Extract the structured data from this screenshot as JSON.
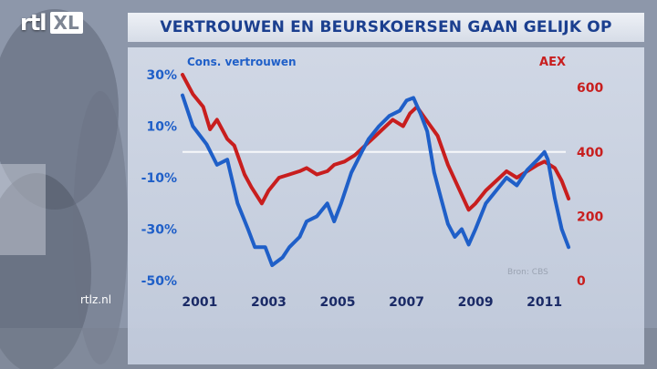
{
  "title": "VERTROUWEN EN BEURSKOERSEN GAAN GELIJK OP",
  "logo": {
    "left": "rtl",
    "right": "XL"
  },
  "site": "rtlz.nl",
  "source": "Bron: CBS",
  "colors": {
    "blue": "#1f5fc8",
    "red": "#c81e1e",
    "panel": "#d3dae8",
    "title": "#1b3f8f"
  },
  "chart_data": {
    "type": "line",
    "x_ticks": [
      "2001",
      "2003",
      "2005",
      "2007",
      "2009",
      "2011"
    ],
    "x_range": [
      2000.5,
      2011.75
    ],
    "left_axis": {
      "label": "Cons. vertrouwen",
      "ticks": [
        "30%",
        "10%",
        "-10%",
        "-30%",
        "-50%"
      ],
      "tick_values": [
        30,
        10,
        -10,
        -30,
        -50
      ],
      "range": [
        -50,
        30
      ]
    },
    "right_axis": {
      "label": "AEX",
      "ticks": [
        "600",
        "400",
        "200",
        "0"
      ],
      "tick_values": [
        600,
        400,
        200,
        0
      ],
      "range": [
        0,
        640
      ]
    },
    "grid": "horizontal line at 400 (AEX)",
    "series": [
      {
        "name": "Cons. vertrouwen",
        "axis": "left",
        "color": "#1f5fc8",
        "points": [
          [
            2000.5,
            22
          ],
          [
            2000.8,
            10
          ],
          [
            2001.2,
            3
          ],
          [
            2001.5,
            -5
          ],
          [
            2001.8,
            -3
          ],
          [
            2002.1,
            -20
          ],
          [
            2002.4,
            -30
          ],
          [
            2002.6,
            -37
          ],
          [
            2002.9,
            -37
          ],
          [
            2003.1,
            -44
          ],
          [
            2003.4,
            -41
          ],
          [
            2003.6,
            -37
          ],
          [
            2003.9,
            -33
          ],
          [
            2004.1,
            -27
          ],
          [
            2004.4,
            -25
          ],
          [
            2004.7,
            -20
          ],
          [
            2004.9,
            -27
          ],
          [
            2005.1,
            -20
          ],
          [
            2005.4,
            -8
          ],
          [
            2005.7,
            0
          ],
          [
            2005.9,
            5
          ],
          [
            2006.2,
            10
          ],
          [
            2006.5,
            14
          ],
          [
            2006.8,
            16
          ],
          [
            2007.0,
            20
          ],
          [
            2007.2,
            21
          ],
          [
            2007.4,
            15
          ],
          [
            2007.6,
            8
          ],
          [
            2007.8,
            -8
          ],
          [
            2008.0,
            -18
          ],
          [
            2008.2,
            -28
          ],
          [
            2008.4,
            -33
          ],
          [
            2008.6,
            -30
          ],
          [
            2008.8,
            -36
          ],
          [
            2009.0,
            -30
          ],
          [
            2009.3,
            -20
          ],
          [
            2009.6,
            -15
          ],
          [
            2009.9,
            -10
          ],
          [
            2010.2,
            -13
          ],
          [
            2010.5,
            -7
          ],
          [
            2010.8,
            -3
          ],
          [
            2011.0,
            0
          ],
          [
            2011.1,
            -3
          ],
          [
            2011.3,
            -18
          ],
          [
            2011.5,
            -30
          ],
          [
            2011.7,
            -37
          ]
        ]
      },
      {
        "name": "AEX",
        "axis": "right",
        "color": "#c81e1e",
        "points": [
          [
            2000.5,
            640
          ],
          [
            2000.8,
            580
          ],
          [
            2001.1,
            540
          ],
          [
            2001.3,
            470
          ],
          [
            2001.5,
            500
          ],
          [
            2001.8,
            440
          ],
          [
            2002.0,
            420
          ],
          [
            2002.3,
            330
          ],
          [
            2002.5,
            290
          ],
          [
            2002.8,
            240
          ],
          [
            2003.0,
            280
          ],
          [
            2003.3,
            320
          ],
          [
            2003.6,
            330
          ],
          [
            2003.9,
            340
          ],
          [
            2004.1,
            350
          ],
          [
            2004.4,
            330
          ],
          [
            2004.7,
            340
          ],
          [
            2004.9,
            360
          ],
          [
            2005.2,
            370
          ],
          [
            2005.5,
            390
          ],
          [
            2005.8,
            420
          ],
          [
            2006.1,
            450
          ],
          [
            2006.3,
            470
          ],
          [
            2006.6,
            500
          ],
          [
            2006.9,
            480
          ],
          [
            2007.1,
            520
          ],
          [
            2007.3,
            540
          ],
          [
            2007.5,
            510
          ],
          [
            2007.7,
            480
          ],
          [
            2007.9,
            450
          ],
          [
            2008.2,
            360
          ],
          [
            2008.5,
            290
          ],
          [
            2008.8,
            220
          ],
          [
            2009.0,
            240
          ],
          [
            2009.3,
            280
          ],
          [
            2009.6,
            310
          ],
          [
            2009.9,
            340
          ],
          [
            2010.2,
            320
          ],
          [
            2010.5,
            340
          ],
          [
            2010.8,
            360
          ],
          [
            2011.0,
            370
          ],
          [
            2011.3,
            350
          ],
          [
            2011.5,
            310
          ],
          [
            2011.7,
            255
          ]
        ]
      }
    ]
  }
}
